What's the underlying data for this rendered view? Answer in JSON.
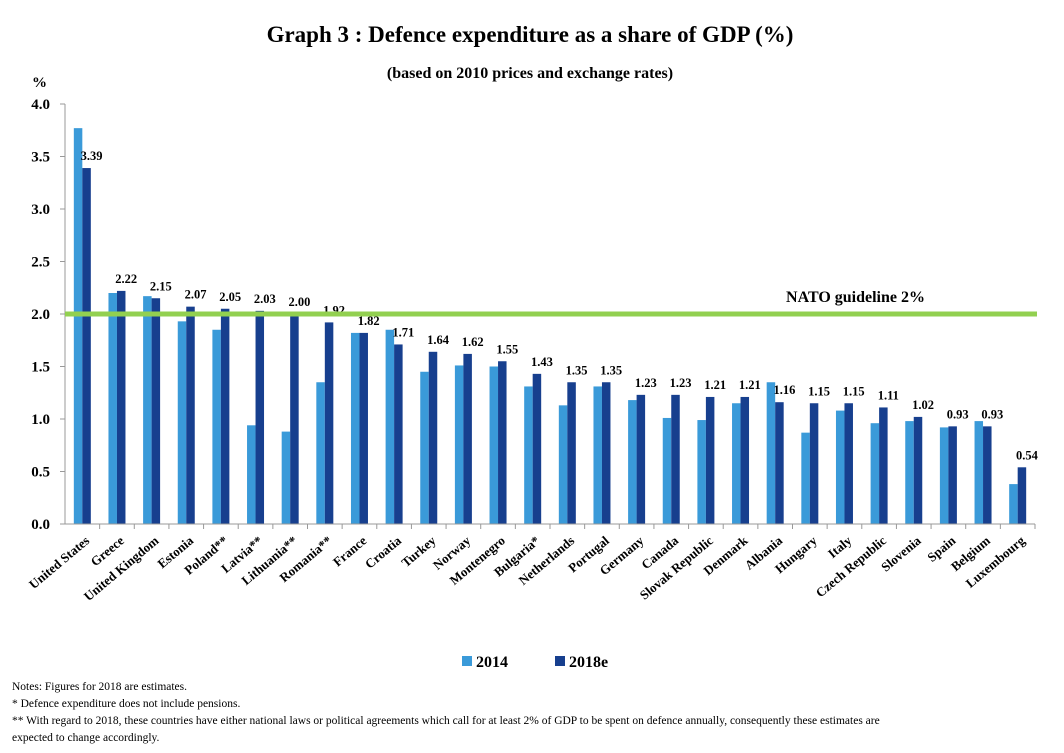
{
  "chart_data": {
    "type": "bar",
    "title": "Graph 3 : Defence expenditure as a share of GDP (%)",
    "subtitle": "(based on 2010 prices and exchange rates)",
    "y_label": "%",
    "categories": [
      "United States",
      "Greece",
      "United Kingdom",
      "Estonia",
      "Poland**",
      "Latvia**",
      "Lithuania**",
      "Romania**",
      "France",
      "Croatia",
      "Turkey",
      "Norway",
      "Montenegro",
      "Bulgaria*",
      "Netherlands",
      "Portugal",
      "Germany",
      "Canada",
      "Slovak Republic",
      "Denmark",
      "Albania",
      "Hungary",
      "Italy",
      "Czech Republic",
      "Slovenia",
      "Spain",
      "Belgium",
      "Luxembourg"
    ],
    "series": [
      {
        "name": "2014",
        "color": "#3a9ad9",
        "values": [
          3.77,
          2.2,
          2.17,
          1.93,
          1.85,
          0.94,
          0.88,
          1.35,
          1.82,
          1.85,
          1.45,
          1.51,
          1.5,
          1.31,
          1.13,
          1.31,
          1.18,
          1.01,
          0.99,
          1.15,
          1.35,
          0.87,
          1.08,
          0.96,
          0.98,
          0.92,
          0.98,
          0.38
        ]
      },
      {
        "name": "2018e",
        "color": "#173f8e",
        "values": [
          3.39,
          2.22,
          2.15,
          2.07,
          2.05,
          2.03,
          2.0,
          1.92,
          1.82,
          1.71,
          1.64,
          1.62,
          1.55,
          1.43,
          1.35,
          1.35,
          1.23,
          1.23,
          1.21,
          1.21,
          1.16,
          1.15,
          1.15,
          1.11,
          1.02,
          0.93,
          0.93,
          0.54
        ],
        "value_labels": [
          "3.39",
          "2.22",
          "2.15",
          "2.07",
          "2.05",
          "2.03",
          "2.00",
          "1.92",
          "1.82",
          "1.71",
          "1.64",
          "1.62",
          "1.55",
          "1.43",
          "1.35",
          "1.35",
          "1.23",
          "1.23",
          "1.21",
          "1.21",
          "1.16",
          "1.15",
          "1.15",
          "1.11",
          "1.02",
          "0.93",
          "0.93",
          "0.54"
        ]
      }
    ],
    "ylim": [
      0,
      4
    ],
    "yticks": [
      {
        "value": 0,
        "label": "0.0"
      },
      {
        "value": 0.5,
        "label": "0.5"
      },
      {
        "value": 1,
        "label": "1.0"
      },
      {
        "value": 1.5,
        "label": "1.5"
      },
      {
        "value": 2,
        "label": "2.0"
      },
      {
        "value": 2.5,
        "label": "2.5"
      },
      {
        "value": 3,
        "label": "3.0"
      },
      {
        "value": 3.5,
        "label": "3.5"
      },
      {
        "value": 4,
        "label": "4.0"
      }
    ],
    "reference_line": {
      "value": 2,
      "label": "NATO guideline 2%",
      "color": "#92d050"
    },
    "legend": "bottom",
    "notes": [
      "Notes: Figures for 2018 are estimates.",
      "*  Defence expenditure does not include pensions.",
      "** With regard to 2018, these countries have either national laws or political agreements which call for at least 2% of GDP to be spent on defence annually, consequently these estimates are",
      "expected to change accordingly."
    ]
  }
}
